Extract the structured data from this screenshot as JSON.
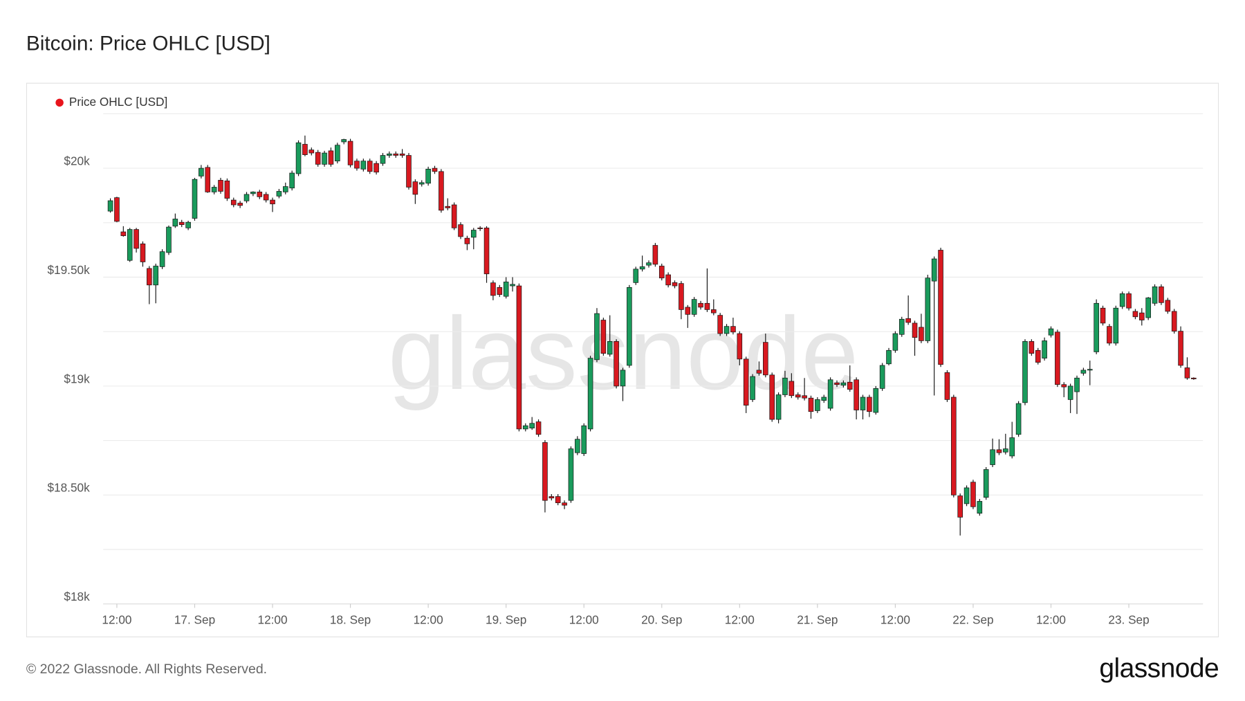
{
  "chart_data": {
    "type": "candlestick",
    "title": "Bitcoin: Price OHLC [USD]",
    "watermark": "glassnode",
    "footer": "© 2022 Glassnode. All Rights Reserved.",
    "logo": "glassnode",
    "categories": [
      null,
      "12:00",
      null,
      null,
      null,
      null,
      null,
      null,
      null,
      null,
      null,
      null,
      null,
      "17. Sep",
      null,
      null,
      null,
      null,
      null,
      null,
      null,
      null,
      null,
      null,
      null,
      "12:00",
      null,
      null,
      null,
      null,
      null,
      null,
      null,
      null,
      null,
      null,
      null,
      "18. Sep",
      null,
      null,
      null,
      null,
      null,
      null,
      null,
      null,
      null,
      null,
      null,
      "12:00",
      null,
      null,
      null,
      null,
      null,
      null,
      null,
      null,
      null,
      null,
      null,
      "19. Sep",
      null,
      null,
      null,
      null,
      null,
      null,
      null,
      null,
      null,
      null,
      null,
      "12:00",
      null,
      null,
      null,
      null,
      null,
      null,
      null,
      null,
      null,
      null,
      null,
      "20. Sep",
      null,
      null,
      null,
      null,
      null,
      null,
      null,
      null,
      null,
      null,
      null,
      "12:00",
      null,
      null,
      null,
      null,
      null,
      null,
      null,
      null,
      null,
      null,
      null,
      "21. Sep",
      null,
      null,
      null,
      null,
      null,
      null,
      null,
      null,
      null,
      null,
      null,
      "12:00",
      null,
      null,
      null,
      null,
      null,
      null,
      null,
      null,
      null,
      null,
      null,
      "22. Sep",
      null,
      null,
      null,
      null,
      null,
      null,
      null,
      null,
      null,
      null,
      null,
      "12:00",
      null,
      null,
      null,
      null,
      null,
      null,
      null,
      null,
      null,
      null,
      null,
      "23. Sep",
      null,
      null,
      null,
      null,
      null,
      null,
      null,
      null,
      null,
      null
    ],
    "series": [
      {
        "name": "Price OHLC [USD]",
        "color": "#e8141c",
        "up_color": "#1a9b5c",
        "down_color": "#d81920",
        "open": [
          19803,
          19865,
          19708,
          19577,
          19719,
          19653,
          19540,
          19464,
          19548,
          19613,
          19734,
          19752,
          19726,
          19770,
          19964,
          20004,
          19891,
          19945,
          19942,
          19854,
          19840,
          19850,
          19883,
          19891,
          19880,
          19854,
          19872,
          19891,
          19909,
          19975,
          20110,
          20084,
          20073,
          20018,
          20080,
          20033,
          20121,
          20124,
          20033,
          19996,
          20033,
          20022,
          20022,
          20059,
          20066,
          20066,
          20059,
          19938,
          19927,
          19931,
          20000,
          19985,
          19825,
          19832,
          19741,
          19679,
          19683,
          19726,
          19726,
          19474,
          19453,
          19412,
          19460,
          19460,
          18803,
          18807,
          18836,
          18741,
          18493,
          18493,
          18464,
          18475,
          18694,
          18690,
          18803,
          19121,
          19303,
          19146,
          19205,
          19000,
          19095,
          19475,
          19537,
          19555,
          19646,
          19551,
          19511,
          19475,
          19471,
          19362,
          19329,
          19380,
          19380,
          19351,
          19325,
          19241,
          19274,
          19241,
          19124,
          18938,
          19073,
          19201,
          19051,
          18847,
          18960,
          19022,
          18960,
          18956,
          18945,
          18887,
          18934,
          18898,
          19015,
          19004,
          19018,
          19029,
          18890,
          18949,
          18879,
          18989,
          19102,
          19164,
          19237,
          19310,
          19289,
          19270,
          19208,
          19482,
          19624,
          19062,
          18949,
          18496,
          18460,
          18559,
          18416,
          18489,
          18639,
          18708,
          18697,
          18679,
          18778,
          18924,
          19205,
          19164,
          19128,
          19234,
          19248,
          19007,
          18938,
          18974,
          19059,
          19073,
          19157,
          19358,
          19274,
          19197,
          19365,
          19424,
          19343,
          19336,
          19314,
          19380,
          19456,
          19394,
          19343,
          19252,
          19084,
          19037
        ],
        "high": [
          19862,
          19869,
          19734,
          19726,
          19726,
          19664,
          19551,
          19562,
          19628,
          19737,
          19792,
          19763,
          19759,
          19956,
          20015,
          20015,
          19923,
          19956,
          19953,
          19865,
          19850,
          19891,
          19894,
          19901,
          19891,
          19865,
          19905,
          19934,
          19989,
          20128,
          20150,
          20095,
          20084,
          20080,
          20095,
          20117,
          20135,
          20135,
          20044,
          20044,
          20044,
          20033,
          20070,
          20077,
          20077,
          20088,
          20070,
          19949,
          19945,
          20007,
          20011,
          19996,
          19862,
          19843,
          19752,
          19690,
          19726,
          19734,
          19734,
          19485,
          19464,
          19500,
          19500,
          19471,
          18829,
          18858,
          18847,
          18752,
          18504,
          18504,
          18475,
          18723,
          18770,
          18829,
          19139,
          19358,
          19314,
          19325,
          19215,
          19084,
          19464,
          19548,
          19599,
          19577,
          19657,
          19562,
          19522,
          19485,
          19482,
          19372,
          19409,
          19391,
          19540,
          19398,
          19336,
          19285,
          19314,
          19252,
          19135,
          19055,
          19113,
          19241,
          19062,
          18971,
          19070,
          19059,
          18971,
          19037,
          18956,
          18949,
          18960,
          19040,
          19026,
          19026,
          19095,
          19040,
          18960,
          18960,
          19000,
          19106,
          19175,
          19252,
          19318,
          19416,
          19300,
          19332,
          19511,
          19595,
          19635,
          19073,
          18960,
          18507,
          18544,
          18570,
          18482,
          18628,
          18759,
          18756,
          18781,
          18836,
          18931,
          19215,
          19215,
          19175,
          19223,
          19274,
          19259,
          19018,
          19011,
          19048,
          19084,
          19117,
          19398,
          19369,
          19285,
          19369,
          19434,
          19434,
          19354,
          19358,
          19409,
          19467,
          19467,
          19405,
          19354,
          19274,
          19132,
          19040
        ],
        "low": [
          19796,
          19752,
          19686,
          19570,
          19613,
          19548,
          19376,
          19380,
          19537,
          19602,
          19726,
          19730,
          19716,
          19759,
          19953,
          19887,
          19880,
          19883,
          19850,
          19821,
          19817,
          19840,
          19872,
          19858,
          19843,
          19799,
          19862,
          19880,
          19898,
          19964,
          20055,
          20059,
          20007,
          20007,
          20007,
          20022,
          20110,
          20004,
          19989,
          19985,
          19974,
          19971,
          20011,
          20048,
          20048,
          20048,
          19902,
          19836,
          19916,
          19920,
          19974,
          19796,
          19807,
          19716,
          19675,
          19624,
          19628,
          19712,
          19474,
          19394,
          19409,
          19402,
          19434,
          18792,
          18792,
          18799,
          18767,
          18420,
          18475,
          18453,
          18435,
          18464,
          18683,
          18679,
          18792,
          19110,
          19139,
          19135,
          18989,
          18931,
          19084,
          19464,
          19526,
          19544,
          19548,
          19485,
          19453,
          19449,
          19307,
          19267,
          19318,
          19351,
          19340,
          19325,
          19230,
          19230,
          19237,
          19095,
          18876,
          18927,
          19048,
          19040,
          18836,
          18829,
          18949,
          18945,
          18938,
          18934,
          18850,
          18876,
          18923,
          18887,
          18996,
          18993,
          18974,
          18847,
          18847,
          18858,
          18869,
          18978,
          19095,
          19153,
          19226,
          19281,
          19139,
          19197,
          19197,
          18957,
          19088,
          18927,
          18489,
          18314,
          18449,
          18435,
          18405,
          18478,
          18628,
          18683,
          18686,
          18668,
          18767,
          18912,
          19139,
          19099,
          19117,
          19223,
          18996,
          18949,
          18876,
          18872,
          19048,
          19004,
          19146,
          19278,
          19186,
          19186,
          19354,
          19347,
          19307,
          19278,
          19303,
          19369,
          19372,
          19332,
          19241,
          19084,
          19029,
          19029
        ],
        "close": [
          19851,
          19756,
          19690,
          19719,
          19632,
          19570,
          19464,
          19551,
          19617,
          19730,
          19767,
          19741,
          19752,
          19949,
          20000,
          19891,
          19913,
          19894,
          19862,
          19832,
          19829,
          19880,
          19891,
          19869,
          19854,
          19836,
          19894,
          19916,
          19978,
          20117,
          20062,
          20070,
          20018,
          20070,
          20018,
          20106,
          20132,
          20015,
          20000,
          20033,
          19985,
          19982,
          20059,
          20066,
          20059,
          20059,
          19913,
          19880,
          19934,
          19996,
          19985,
          19807,
          19818,
          19726,
          19686,
          19653,
          19716,
          19723,
          19515,
          19416,
          19420,
          19478,
          19467,
          18803,
          18818,
          18829,
          18778,
          18475,
          18486,
          18464,
          18453,
          18712,
          18756,
          18818,
          19128,
          19333,
          19150,
          19205,
          19000,
          19073,
          19453,
          19537,
          19548,
          19566,
          19559,
          19496,
          19464,
          19460,
          19351,
          19329,
          19398,
          19362,
          19351,
          19336,
          19241,
          19274,
          19248,
          19124,
          18912,
          19044,
          19059,
          19051,
          18847,
          18960,
          19037,
          18956,
          18949,
          18945,
          18883,
          18938,
          18949,
          19029,
          19007,
          19015,
          18985,
          18890,
          18949,
          18883,
          18989,
          19095,
          19164,
          19241,
          19307,
          19292,
          19223,
          19208,
          19496,
          19584,
          19099,
          18938,
          18500,
          18398,
          18533,
          18446,
          18471,
          18617,
          18708,
          18694,
          18712,
          18763,
          18920,
          19205,
          19150,
          19109,
          19208,
          19263,
          19007,
          18996,
          19000,
          19037,
          19073,
          19077,
          19380,
          19289,
          19197,
          19358,
          19424,
          19358,
          19318,
          19303,
          19405,
          19456,
          19383,
          19343,
          19252,
          19095,
          19037,
          19033
        ]
      }
    ],
    "ylim": [
      18000,
      20250
    ],
    "yticks": [
      {
        "value": 18000,
        "label": "$18k"
      },
      {
        "value": 18500,
        "label": "$18.50k"
      },
      {
        "value": 19000,
        "label": "$19k"
      },
      {
        "value": 19500,
        "label": "$19.50k"
      },
      {
        "value": 20000,
        "label": "$20k"
      }
    ],
    "y_minor_ticks": [
      18250,
      18750,
      19250,
      19750,
      20250
    ],
    "grid": true,
    "legend": "top-left"
  }
}
